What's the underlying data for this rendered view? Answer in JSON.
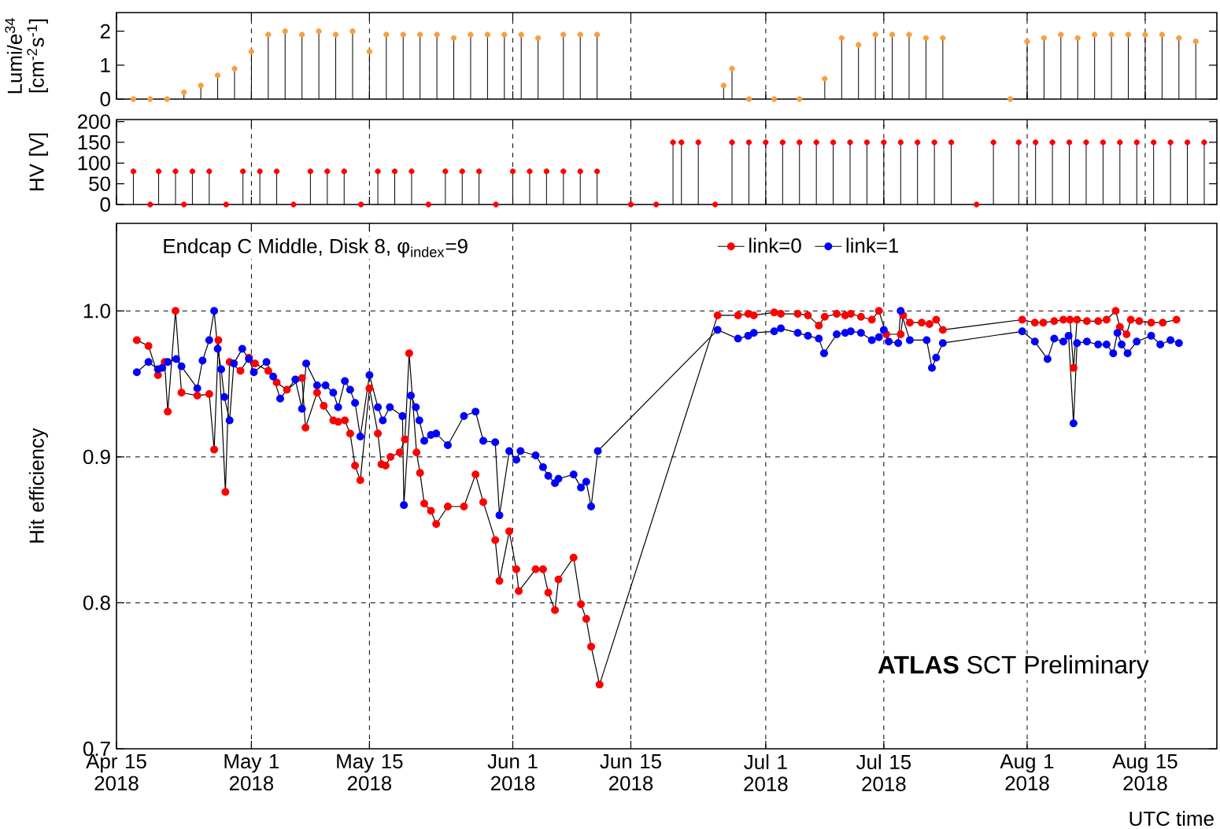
{
  "chart_data": [
    {
      "type": "lollipop",
      "ylabel": "Lumi/e$^{34}$ [cm$^{-2}$s$^{-1}$]",
      "xlim": [
        "2018-04-15",
        "2018-08-23T12:00"
      ],
      "ylim": [
        0,
        2.55
      ],
      "yticks": [
        0,
        1,
        2
      ],
      "xticks": [
        {
          "value": "2018-04-15",
          "label": null
        },
        {
          "value": "2018-05-01",
          "label": null
        },
        {
          "value": "2018-05-15",
          "label": null
        },
        {
          "value": "2018-06-01",
          "label": null
        },
        {
          "value": "2018-06-15",
          "label": null
        },
        {
          "value": "2018-07-01",
          "label": null
        },
        {
          "value": "2018-07-15",
          "label": null
        },
        {
          "value": "2018-08-01",
          "label": null
        },
        {
          "value": "2018-08-15",
          "label": null
        }
      ],
      "tick_labels": "y",
      "grid": "x",
      "marker": "circle",
      "line_style": "solid",
      "series": [
        {
          "color": "#f5a040",
          "x": [
            "2018-04-17",
            "2018-04-19",
            "2018-04-21",
            "2018-04-23",
            "2018-04-25",
            "2018-04-27",
            "2018-04-29",
            "2018-05-01",
            "2018-05-03",
            "2018-05-05",
            "2018-05-07",
            "2018-05-09",
            "2018-05-11",
            "2018-05-13",
            "2018-05-15",
            "2018-05-17",
            "2018-05-19",
            "2018-05-21",
            "2018-05-23",
            "2018-05-25",
            "2018-05-27",
            "2018-05-29",
            "2018-05-31",
            "2018-06-02",
            "2018-06-04",
            "2018-06-07",
            "2018-06-09",
            "2018-06-11",
            "2018-06-26",
            "2018-06-27",
            "2018-06-29",
            "2018-07-02",
            "2018-07-05",
            "2018-07-08",
            "2018-07-10",
            "2018-07-12",
            "2018-07-14",
            "2018-07-16",
            "2018-07-18",
            "2018-07-20",
            "2018-07-22",
            "2018-07-30",
            "2018-08-01",
            "2018-08-03",
            "2018-08-05",
            "2018-08-07",
            "2018-08-09",
            "2018-08-11",
            "2018-08-13",
            "2018-08-15",
            "2018-08-17",
            "2018-08-19",
            "2018-08-21"
          ],
          "values": [
            0,
            0,
            0,
            0.2,
            0.4,
            0.7,
            0.9,
            1.4,
            1.9,
            2.0,
            1.9,
            2.0,
            1.9,
            2.0,
            1.4,
            1.9,
            1.9,
            1.9,
            1.9,
            1.8,
            1.9,
            1.9,
            1.9,
            1.9,
            1.8,
            1.9,
            1.9,
            1.9,
            0.4,
            0.9,
            0,
            0,
            0,
            0.6,
            1.8,
            1.6,
            1.9,
            1.9,
            1.9,
            1.8,
            1.8,
            0,
            1.7,
            1.8,
            1.9,
            1.8,
            1.9,
            1.9,
            1.9,
            1.9,
            1.9,
            1.8,
            1.7
          ]
        }
      ]
    },
    {
      "type": "lollipop",
      "ylabel": "HV [V]",
      "xlim": [
        "2018-04-15",
        "2018-08-23T12:00"
      ],
      "ylim": [
        0,
        205
      ],
      "yticks": [
        0,
        50,
        100,
        150,
        200
      ],
      "xticks": [
        {
          "value": "2018-04-15",
          "label": null
        },
        {
          "value": "2018-05-01",
          "label": null
        },
        {
          "value": "2018-05-15",
          "label": null
        },
        {
          "value": "2018-06-01",
          "label": null
        },
        {
          "value": "2018-06-15",
          "label": null
        },
        {
          "value": "2018-07-01",
          "label": null
        },
        {
          "value": "2018-07-15",
          "label": null
        },
        {
          "value": "2018-08-01",
          "label": null
        },
        {
          "value": "2018-08-15",
          "label": null
        }
      ],
      "tick_labels": "y",
      "grid": "x",
      "marker": "circle",
      "line_style": "solid",
      "series": [
        {
          "color": "#ff0000",
          "x": [
            "2018-04-17",
            "2018-04-19",
            "2018-04-20",
            "2018-04-22",
            "2018-04-23",
            "2018-04-24",
            "2018-04-26",
            "2018-04-28",
            "2018-04-30",
            "2018-05-02",
            "2018-05-04",
            "2018-05-06",
            "2018-05-08",
            "2018-05-10",
            "2018-05-12",
            "2018-05-14",
            "2018-05-16",
            "2018-05-18",
            "2018-05-20",
            "2018-05-22",
            "2018-05-24",
            "2018-05-26",
            "2018-05-28",
            "2018-05-30",
            "2018-06-01",
            "2018-06-03",
            "2018-06-05",
            "2018-06-07",
            "2018-06-09",
            "2018-06-11",
            "2018-06-15",
            "2018-06-18",
            "2018-06-20",
            "2018-06-21",
            "2018-06-23",
            "2018-06-25",
            "2018-06-27",
            "2018-06-29",
            "2018-07-01",
            "2018-07-03",
            "2018-07-05",
            "2018-07-07",
            "2018-07-09",
            "2018-07-11",
            "2018-07-13",
            "2018-07-15",
            "2018-07-17",
            "2018-07-19",
            "2018-07-21",
            "2018-07-23",
            "2018-07-26",
            "2018-07-28",
            "2018-07-31",
            "2018-08-02",
            "2018-08-04",
            "2018-08-06",
            "2018-08-08",
            "2018-08-10",
            "2018-08-12",
            "2018-08-14",
            "2018-08-16",
            "2018-08-18",
            "2018-08-20",
            "2018-08-22"
          ],
          "values": [
            80,
            0,
            80,
            80,
            0,
            80,
            80,
            0,
            80,
            80,
            80,
            0,
            80,
            80,
            80,
            0,
            80,
            80,
            80,
            0,
            80,
            80,
            80,
            0,
            80,
            80,
            80,
            80,
            80,
            80,
            0,
            0,
            150,
            150,
            150,
            0,
            150,
            150,
            150,
            150,
            150,
            150,
            150,
            150,
            150,
            150,
            150,
            150,
            150,
            150,
            0,
            150,
            150,
            150,
            150,
            150,
            150,
            150,
            150,
            150,
            150,
            150,
            150,
            150
          ]
        }
      ]
    },
    {
      "type": "line",
      "ylabel": "Hit efficiency",
      "xlabel": "UTC time",
      "xlim": [
        "2018-04-15",
        "2018-08-23T12:00"
      ],
      "ylim": [
        0.7,
        1.06
      ],
      "yticks": [
        0.7,
        0.8,
        0.9,
        {
          "value": 1,
          "label": "1.0"
        }
      ],
      "xticks": [
        {
          "value": "2018-04-15",
          "label": "Apr 15 2018"
        },
        {
          "value": "2018-05-01",
          "label": "May 1 2018"
        },
        {
          "value": "2018-05-15",
          "label": "May 15 2018"
        },
        {
          "value": "2018-06-01",
          "label": "Jun 1 2018"
        },
        {
          "value": "2018-06-15",
          "label": "Jun 15 2018"
        },
        {
          "value": "2018-07-01",
          "label": "Jul 1 2018"
        },
        {
          "value": "2018-07-15",
          "label": "Jul 15 2018"
        },
        {
          "value": "2018-08-01",
          "label": "Aug 1 2018"
        },
        {
          "value": "2018-08-15",
          "label": "Aug 15 2018"
        }
      ],
      "grid": true,
      "legend": "top",
      "marker": "circle",
      "line_style": "solid",
      "annotations": [
        "Endcap C  Middle,  Disk 8, φ$_{index}$=9",
        "**ATLAS**  SCT Preliminary"
      ],
      "series": [
        {
          "name": "link=0",
          "color": "#ff0000",
          "x": [
            "2018-04-17T10:00",
            "2018-04-18T19:00",
            "2018-04-19T22:00",
            "2018-04-20T17:00",
            "2018-04-21T02:00",
            "2018-04-22T00:00",
            "2018-04-22T17:00",
            "2018-04-24T14:00",
            "2018-04-26T00:00",
            "2018-04-26T14:00",
            "2018-04-27T02:00",
            "2018-04-27T22:00",
            "2018-04-28T10:00",
            "2018-04-29T17:00",
            "2018-04-30T17:00",
            "2018-05-01T10:00",
            "2018-05-03T00:00",
            "2018-05-04T00:00",
            "2018-05-05T05:00",
            "2018-05-07T00:00",
            "2018-05-07T10:00",
            "2018-05-08T19:00",
            "2018-05-09T14:00",
            "2018-05-10T17:00",
            "2018-05-11T07:00",
            "2018-05-12T02:00",
            "2018-05-12T17:00",
            "2018-05-13T07:00",
            "2018-05-13T22:00",
            "2018-05-15T00:00",
            "2018-05-16T00:00",
            "2018-05-16T10:00",
            "2018-05-16T22:00",
            "2018-05-17T12:00",
            "2018-05-18T14:00",
            "2018-05-19T05:00",
            "2018-05-19T17:00",
            "2018-05-20T14:00",
            "2018-05-21T00:00",
            "2018-05-21T12:00",
            "2018-05-22T07:00",
            "2018-05-22T22:00",
            "2018-05-24T07:00",
            "2018-05-26T05:00",
            "2018-05-27T14:00",
            "2018-05-28T12:00",
            "2018-05-29T22:00",
            "2018-05-30T10:00",
            "2018-05-31T14:00",
            "2018-06-01T10:00",
            "2018-06-01T17:00",
            "2018-06-03T17:00",
            "2018-06-04T14:00",
            "2018-06-05T05:00",
            "2018-06-06T00:00",
            "2018-06-06T10:00",
            "2018-06-08T05:00",
            "2018-06-09T02:00",
            "2018-06-09T17:00",
            "2018-06-10T07:00",
            "2018-06-11T07:00",
            "2018-06-25T07:00",
            "2018-06-27T17:00",
            "2018-06-28T22:00",
            "2018-06-29T14:00",
            "2018-07-02T00:00",
            "2018-07-02T19:00",
            "2018-07-04T19:00",
            "2018-07-06T00:00",
            "2018-07-07T07:00",
            "2018-07-08T00:00",
            "2018-07-09T10:00",
            "2018-07-10T10:00",
            "2018-07-11T02:00",
            "2018-07-12T07:00",
            "2018-07-13T14:00",
            "2018-07-14T10:00",
            "2018-07-15T07:00",
            "2018-07-17T00:00",
            "2018-07-17T07:00",
            "2018-07-18T02:00",
            "2018-07-19T12:00",
            "2018-07-20T10:00",
            "2018-07-21T05:00",
            "2018-07-22T00:00",
            "2018-07-31T10:00",
            "2018-08-01T22:00",
            "2018-08-02T22:00",
            "2018-08-04T05:00",
            "2018-08-05T07:00",
            "2018-08-06T02:00",
            "2018-08-06T12:00",
            "2018-08-06T22:00",
            "2018-08-08T02:00",
            "2018-08-09T10:00",
            "2018-08-10T10:00",
            "2018-08-11T12:00",
            "2018-08-12T00:00",
            "2018-08-12T19:00",
            "2018-08-13T07:00",
            "2018-08-14T07:00",
            "2018-08-15T17:00",
            "2018-08-17T02:00",
            "2018-08-18T17:00"
          ],
          "values": [
            0.98,
            0.976,
            0.956,
            0.965,
            0.931,
            1.0,
            0.944,
            0.942,
            0.943,
            0.905,
            0.98,
            0.876,
            0.965,
            0.959,
            0.968,
            0.964,
            0.959,
            0.951,
            0.946,
            0.954,
            0.92,
            0.944,
            0.935,
            0.925,
            0.924,
            0.925,
            0.916,
            0.894,
            0.884,
            0.947,
            0.916,
            0.895,
            0.894,
            0.9,
            0.903,
            0.912,
            0.971,
            0.903,
            0.889,
            0.868,
            0.863,
            0.854,
            0.866,
            0.866,
            0.888,
            0.869,
            0.843,
            0.815,
            0.849,
            0.823,
            0.808,
            0.823,
            0.823,
            0.807,
            0.795,
            0.816,
            0.831,
            0.799,
            0.789,
            0.77,
            0.744,
            0.997,
            0.997,
            0.998,
            0.997,
            0.999,
            0.998,
            0.998,
            0.997,
            0.99,
            0.996,
            0.998,
            0.997,
            0.998,
            0.996,
            0.994,
            1.0,
            0.984,
            0.984,
            0.997,
            0.992,
            0.992,
            0.991,
            0.994,
            0.987,
            0.994,
            0.992,
            0.992,
            0.993,
            0.994,
            0.994,
            0.961,
            0.994,
            0.993,
            0.993,
            0.994,
            1.0,
            0.989,
            0.984,
            0.994,
            0.993,
            0.992,
            0.992,
            0.994
          ]
        },
        {
          "name": "link=1",
          "color": "#0000ff",
          "x": [
            "2018-04-17T10:00",
            "2018-04-18T19:00",
            "2018-04-19T22:00",
            "2018-04-20T10:00",
            "2018-04-21T02:00",
            "2018-04-22T02:00",
            "2018-04-22T17:00",
            "2018-04-24T14:00",
            "2018-04-25T05:00",
            "2018-04-26T00:00",
            "2018-04-26T14:00",
            "2018-04-27T00:00",
            "2018-04-27T10:00",
            "2018-04-27T19:00",
            "2018-04-28T10:00",
            "2018-04-28T22:00",
            "2018-04-29T22:00",
            "2018-04-30T17:00",
            "2018-05-01T07:00",
            "2018-05-02T19:00",
            "2018-05-03T14:00",
            "2018-05-04T10:00",
            "2018-05-06T05:00",
            "2018-05-07T00:00",
            "2018-05-07T12:00",
            "2018-05-08T19:00",
            "2018-05-09T19:00",
            "2018-05-10T17:00",
            "2018-05-11T07:00",
            "2018-05-12T02:00",
            "2018-05-12T17:00",
            "2018-05-13T07:00",
            "2018-05-13T22:00",
            "2018-05-15T00:00",
            "2018-05-16T00:00",
            "2018-05-16T14:00",
            "2018-05-17T10:00",
            "2018-05-18T22:00",
            "2018-05-19T02:00",
            "2018-05-19T22:00",
            "2018-05-20T12:00",
            "2018-05-20T22:00",
            "2018-05-21T12:00",
            "2018-05-22T07:00",
            "2018-05-22T22:00",
            "2018-05-24T07:00",
            "2018-05-26T05:00",
            "2018-05-27T14:00",
            "2018-05-28T12:00",
            "2018-05-29T22:00",
            "2018-05-30T10:00",
            "2018-05-31T14:00",
            "2018-06-01T10:00",
            "2018-06-01T22:00",
            "2018-06-03T17:00",
            "2018-06-04T14:00",
            "2018-06-05T05:00",
            "2018-06-06T00:00",
            "2018-06-06T10:00",
            "2018-06-08T05:00",
            "2018-06-09T02:00",
            "2018-06-09T17:00",
            "2018-06-10T07:00",
            "2018-06-11T02:00",
            "2018-06-25T07:00",
            "2018-06-27T17:00",
            "2018-06-28T22:00",
            "2018-06-29T14:00",
            "2018-07-02T00:00",
            "2018-07-02T19:00",
            "2018-07-04T19:00",
            "2018-07-06T00:00",
            "2018-07-07T07:00",
            "2018-07-07T22:00",
            "2018-07-09T10:00",
            "2018-07-10T10:00",
            "2018-07-11T02:00",
            "2018-07-12T07:00",
            "2018-07-13T14:00",
            "2018-07-14T10:00",
            "2018-07-15T00:00",
            "2018-07-15T14:00",
            "2018-07-16T17:00",
            "2018-07-17T00:00",
            "2018-07-18T02:00",
            "2018-07-20T02:00",
            "2018-07-20T17:00",
            "2018-07-21T05:00",
            "2018-07-22T00:00",
            "2018-07-31T10:00",
            "2018-08-01T22:00",
            "2018-08-03T10:00",
            "2018-08-04T05:00",
            "2018-08-05T07:00",
            "2018-08-05T22:00",
            "2018-08-06T12:00",
            "2018-08-06T22:00",
            "2018-08-08T02:00",
            "2018-08-09T10:00",
            "2018-08-10T10:00",
            "2018-08-11T05:00",
            "2018-08-11T17:00",
            "2018-08-12T05:00",
            "2018-08-12T22:00",
            "2018-08-14T00:00",
            "2018-08-15T17:00",
            "2018-08-16T19:00",
            "2018-08-18T00:00",
            "2018-08-19T00:00"
          ],
          "values": [
            0.958,
            0.965,
            0.96,
            0.961,
            0.965,
            0.967,
            0.962,
            0.947,
            0.966,
            0.98,
            1.0,
            0.974,
            0.96,
            0.941,
            0.925,
            0.964,
            0.974,
            0.967,
            0.958,
            0.965,
            0.955,
            0.94,
            0.953,
            0.933,
            0.964,
            0.949,
            0.949,
            0.944,
            0.934,
            0.952,
            0.946,
            0.937,
            0.914,
            0.956,
            0.934,
            0.925,
            0.934,
            0.928,
            0.867,
            0.942,
            0.934,
            0.925,
            0.911,
            0.915,
            0.916,
            0.908,
            0.928,
            0.931,
            0.911,
            0.91,
            0.86,
            0.904,
            0.898,
            0.904,
            0.901,
            0.893,
            0.887,
            0.882,
            0.885,
            0.888,
            0.879,
            0.883,
            0.866,
            0.904,
            0.987,
            0.981,
            0.983,
            0.985,
            0.986,
            0.988,
            0.985,
            0.983,
            0.981,
            0.971,
            0.984,
            0.985,
            0.986,
            0.985,
            0.98,
            0.982,
            0.987,
            0.979,
            0.978,
            1.0,
            0.98,
            0.98,
            0.961,
            0.968,
            0.978,
            0.986,
            0.979,
            0.967,
            0.981,
            0.979,
            0.983,
            0.923,
            0.978,
            0.979,
            0.977,
            0.977,
            0.971,
            0.985,
            0.977,
            0.971,
            0.979,
            0.983,
            0.977,
            0.98,
            0.978
          ]
        }
      ]
    }
  ]
}
